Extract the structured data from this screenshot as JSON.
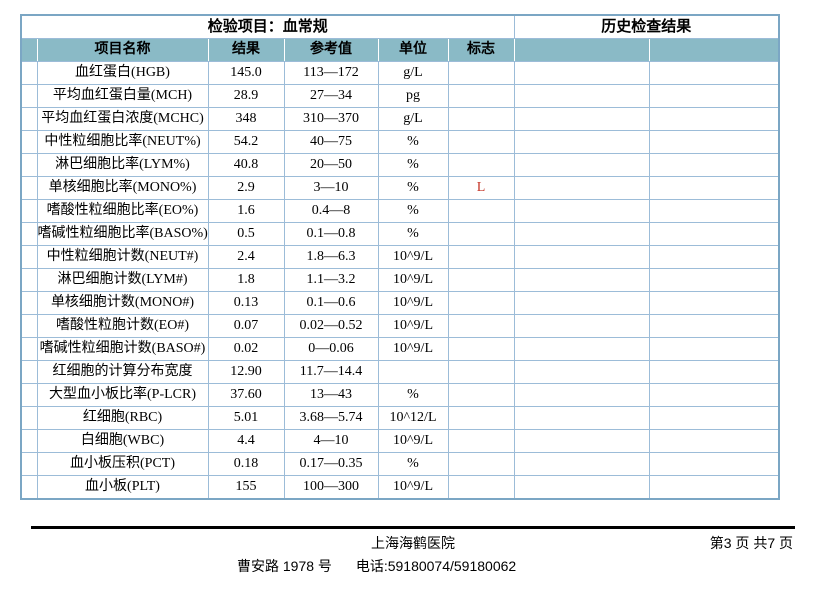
{
  "header": {
    "test_item_label": "检验项目：血常规",
    "history_label": "历史检查结果"
  },
  "table": {
    "columns": [
      "项目名称",
      "结果",
      "参考值",
      "单位",
      "标志"
    ],
    "rows": [
      {
        "name": "血红蛋白(HGB)",
        "result": "145.0",
        "range": "113—172",
        "unit": "g/L",
        "flag": ""
      },
      {
        "name": "平均血红蛋白量(MCH)",
        "result": "28.9",
        "range": "27—34",
        "unit": "pg",
        "flag": ""
      },
      {
        "name": "平均血红蛋白浓度(MCHC)",
        "result": "348",
        "range": "310—370",
        "unit": "g/L",
        "flag": ""
      },
      {
        "name": "中性粒细胞比率(NEUT%)",
        "result": "54.2",
        "range": "40—75",
        "unit": "%",
        "flag": ""
      },
      {
        "name": "淋巴细胞比率(LYM%)",
        "result": "40.8",
        "range": "20—50",
        "unit": "%",
        "flag": ""
      },
      {
        "name": "单核细胞比率(MONO%)",
        "result": "2.9",
        "range": "3—10",
        "unit": "%",
        "flag": "L"
      },
      {
        "name": "嗜酸性粒细胞比率(EO%)",
        "result": "1.6",
        "range": "0.4—8",
        "unit": "%",
        "flag": ""
      },
      {
        "name": "嗜碱性粒细胞比率(BASO%)",
        "result": "0.5",
        "range": "0.1—0.8",
        "unit": "%",
        "flag": ""
      },
      {
        "name": "中性粒细胞计数(NEUT#)",
        "result": "2.4",
        "range": "1.8—6.3",
        "unit": "10^9/L",
        "flag": ""
      },
      {
        "name": "淋巴细胞计数(LYM#)",
        "result": "1.8",
        "range": "1.1—3.2",
        "unit": "10^9/L",
        "flag": ""
      },
      {
        "name": "单核细胞计数(MONO#)",
        "result": "0.13",
        "range": "0.1—0.6",
        "unit": "10^9/L",
        "flag": ""
      },
      {
        "name": "嗜酸性粒胞计数(EO#)",
        "result": "0.07",
        "range": "0.02—0.52",
        "unit": "10^9/L",
        "flag": ""
      },
      {
        "name": "嗜碱性粒细胞计数(BASO#)",
        "result": "0.02",
        "range": "0—0.06",
        "unit": "10^9/L",
        "flag": ""
      },
      {
        "name": "红细胞的计算分布宽度",
        "result": "12.90",
        "range": "11.7—14.4",
        "unit": "",
        "flag": ""
      },
      {
        "name": "大型血小板比率(P-LCR)",
        "result": "37.60",
        "range": "13—43",
        "unit": "%",
        "flag": ""
      },
      {
        "name": "红细胞(RBC)",
        "result": "5.01",
        "range": "3.68—5.74",
        "unit": "10^12/L",
        "flag": ""
      },
      {
        "name": "白细胞(WBC)",
        "result": "4.4",
        "range": "4—10",
        "unit": "10^9/L",
        "flag": ""
      },
      {
        "name": "血小板压积(PCT)",
        "result": "0.18",
        "range": "0.17—0.35",
        "unit": "%",
        "flag": ""
      },
      {
        "name": "血小板(PLT)",
        "result": "155",
        "range": "100—300",
        "unit": "10^9/L",
        "flag": ""
      }
    ]
  },
  "footer": {
    "hospital": "上海海鹤医院",
    "page_info": "第3 页 共7 页",
    "address": "曹安路 1978 号",
    "phone": "电话:59180074/59180062"
  },
  "colors": {
    "header_bg": "#8abac6",
    "border_inner": "#9cbcd8",
    "border_outer": "#7ba6c4",
    "flag_low": "#c53527"
  }
}
